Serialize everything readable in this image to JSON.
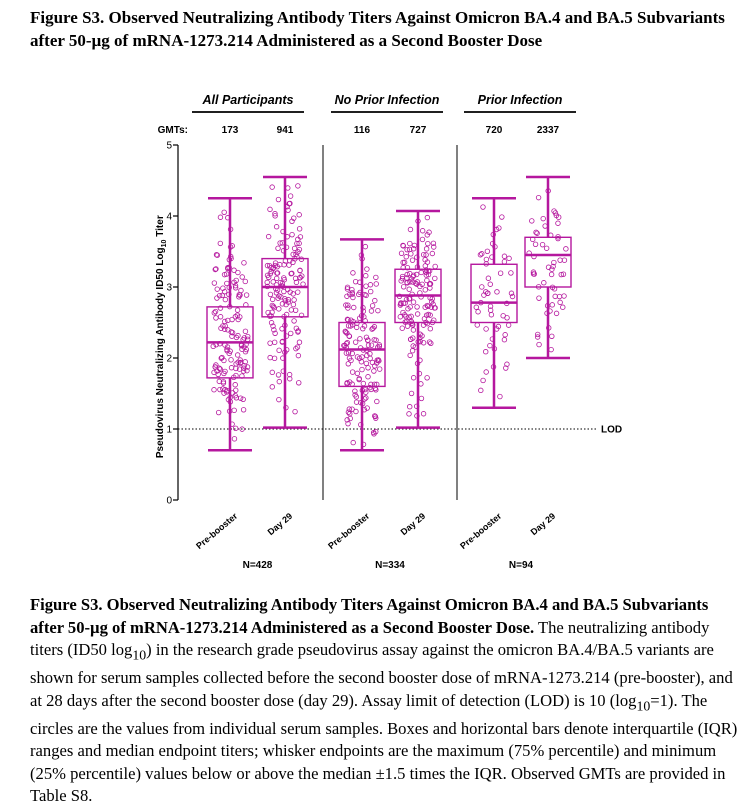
{
  "figure": {
    "title": "Figure S3. Observed Neutralizing Antibody Titers Against Omicron BA.4 and BA.5 Subvariants after 50-µg of mRNA-1273.214 Administered as a Second Booster Dose"
  },
  "chart_data": {
    "type": "box",
    "ylabel_prefix": "Pseudovirus Neutralizing Antibody ID50 Log",
    "ylabel_sub": "10",
    "ylabel_suffix": " Titer",
    "ylim": [
      0,
      5
    ],
    "yticks": [
      "0",
      "1",
      "2",
      "3",
      "4",
      "5"
    ],
    "gmt_label": "GMTs:",
    "lod": {
      "value": 1,
      "label": "LOD"
    },
    "color": "#b5179e",
    "panels": [
      {
        "title": "All Participants",
        "n_label": "N=428",
        "groups": [
          {
            "label": "Pre-booster",
            "gmt": "173",
            "min": 0.7,
            "q1": 1.72,
            "median": 2.22,
            "q3": 2.72,
            "max": 4.25
          },
          {
            "label": "Day 29",
            "gmt": "941",
            "min": 1.02,
            "q1": 2.58,
            "median": 3.0,
            "q3": 3.4,
            "max": 4.55
          }
        ]
      },
      {
        "title": "No Prior Infection",
        "n_label": "N=334",
        "groups": [
          {
            "label": "Pre-booster",
            "gmt": "116",
            "min": 0.7,
            "q1": 1.6,
            "median": 2.12,
            "q3": 2.5,
            "max": 3.67
          },
          {
            "label": "Day 29",
            "gmt": "727",
            "min": 1.02,
            "q1": 2.5,
            "median": 2.88,
            "q3": 3.25,
            "max": 4.07
          }
        ]
      },
      {
        "title": "Prior Infection",
        "n_label": "N=94",
        "groups": [
          {
            "label": "Pre-booster",
            "gmt": "720",
            "min": 1.3,
            "q1": 2.5,
            "median": 2.78,
            "q3": 3.32,
            "max": 4.25
          },
          {
            "label": "Day 29",
            "gmt": "2337",
            "min": 2.0,
            "q1": 3.0,
            "median": 3.45,
            "q3": 3.7,
            "max": 4.55
          }
        ]
      }
    ]
  },
  "caption": {
    "title": "Figure S3. Observed Neutralizing Antibody Titers Against Omicron BA.4 and BA.5 Subvariants after 50-µg of mRNA-1273.214 Administered as a Second Booster Dose.",
    "t1": " The neutralizing antibody titers (ID50 log",
    "t1_sub": "10",
    "t2": ") in the research grade pseudovirus assay against the omicron BA.4/BA.5 variants are shown for serum samples collected before the second booster dose of mRNA-1273.214 (pre-booster), and at 28 days after the second booster dose (day 29). Assay limit of detection (LOD) is 10 (log",
    "t2_sub": "10",
    "t3": "=1). The circles are the values from individual serum samples. Boxes and horizontal bars denote interquartile (IQR) ranges and median endpoint titers; whisker endpoints are the maximum (75% percentile) and minimum (25% percentile) values below or above the median ±1.5 times the IQR. Observed GMTs are provided in Table S8."
  }
}
